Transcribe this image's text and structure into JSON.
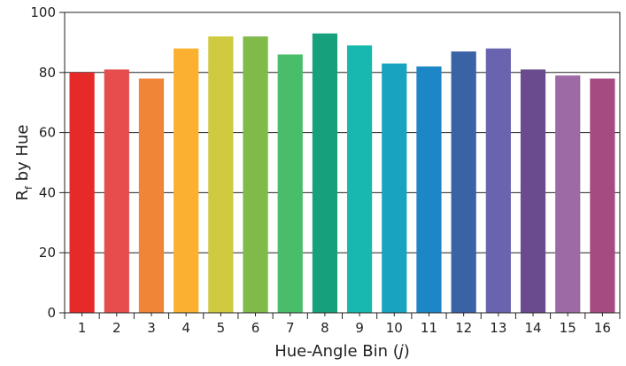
{
  "chart_data": {
    "type": "bar",
    "title": "",
    "xlabel_prefix": "Hue-Angle Bin (",
    "xlabel_var": "j",
    "xlabel_suffix": ")",
    "ylabel_main": "R",
    "ylabel_sub": "f",
    "ylabel_rest": " by Hue",
    "ylim": [
      0,
      100
    ],
    "yticks": [
      0,
      20,
      40,
      60,
      80,
      100
    ],
    "grid": true,
    "categories": [
      "1",
      "2",
      "3",
      "4",
      "5",
      "6",
      "7",
      "8",
      "9",
      "10",
      "11",
      "12",
      "13",
      "14",
      "15",
      "16"
    ],
    "values": [
      80,
      81,
      78,
      88,
      92,
      92,
      86,
      93,
      89,
      83,
      82,
      87,
      88,
      81,
      79,
      78
    ],
    "colors": [
      "#e62a2a",
      "#e64d4d",
      "#f08437",
      "#fbb030",
      "#cfca3f",
      "#7fba4a",
      "#4abd6b",
      "#17a07c",
      "#18b8ae",
      "#18a4c1",
      "#1d86c6",
      "#3a63a6",
      "#6a64b0",
      "#6a4b8e",
      "#9e6aa6",
      "#a64b82"
    ]
  }
}
